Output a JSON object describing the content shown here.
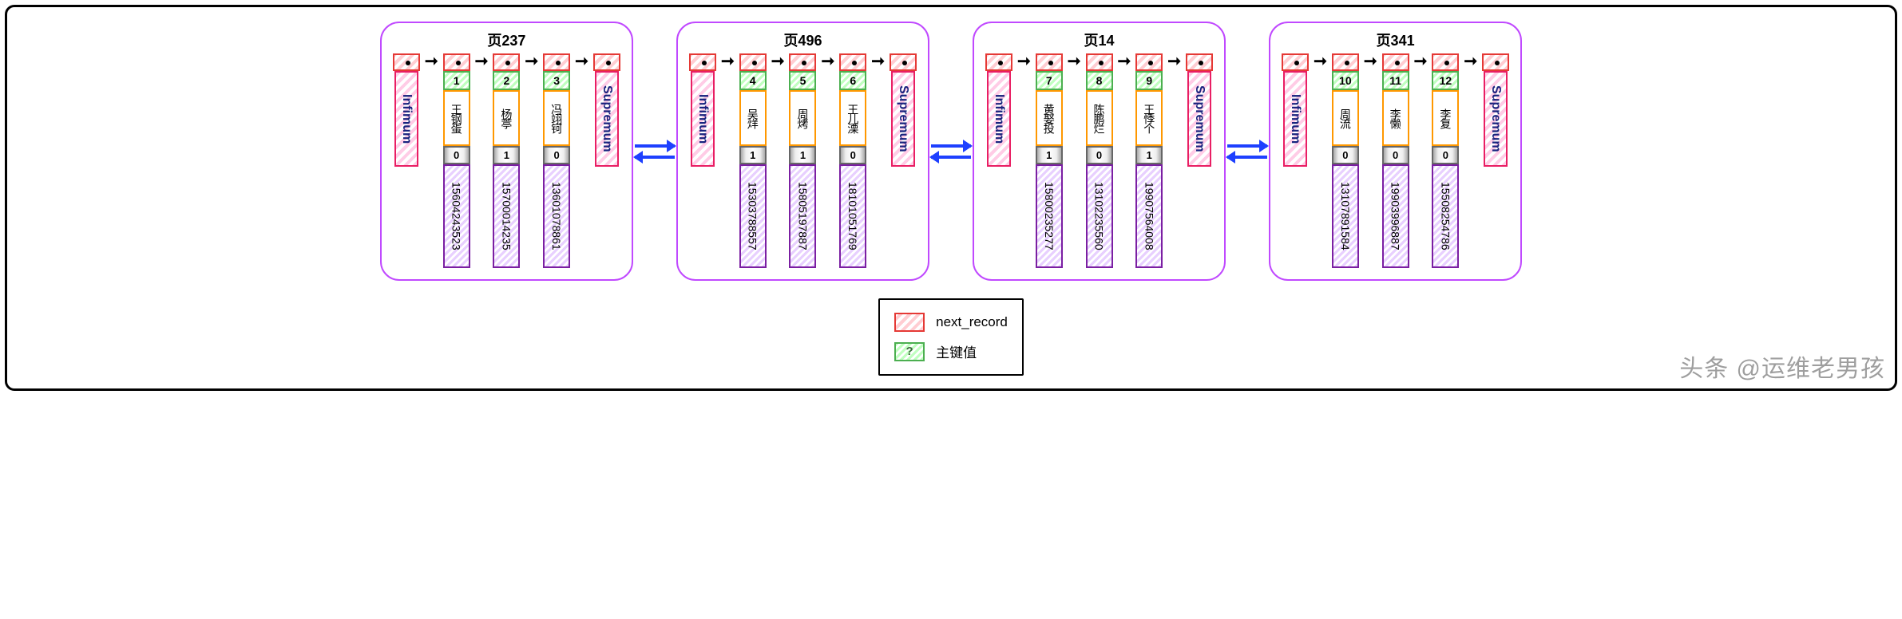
{
  "pages": [
    {
      "title": "页237",
      "records": [
        {
          "pk": "1",
          "name": "王钢蛋",
          "flag": "0",
          "phone": "15604243523"
        },
        {
          "pk": "2",
          "name": "杨葶",
          "flag": "1",
          "phone": "15700014235"
        },
        {
          "pk": "3",
          "name": "冯翊钶",
          "flag": "0",
          "phone": "13601078861"
        }
      ]
    },
    {
      "title": "页496",
      "records": [
        {
          "pk": "4",
          "name": "吴烊",
          "flag": "1",
          "phone": "15303788557"
        },
        {
          "pk": "5",
          "name": "周烤",
          "flag": "1",
          "phone": "15805197887"
        },
        {
          "pk": "6",
          "name": "王儿溧",
          "flag": "0",
          "phone": "18101051769"
        }
      ]
    },
    {
      "title": "页14",
      "records": [
        {
          "pk": "7",
          "name": "黄娶投",
          "flag": "1",
          "phone": "15800235277"
        },
        {
          "pk": "8",
          "name": "陈鹏烂",
          "flag": "0",
          "phone": "13102235560"
        },
        {
          "pk": "9",
          "name": "王悸个",
          "flag": "1",
          "phone": "19907564008"
        }
      ]
    },
    {
      "title": "页341",
      "records": [
        {
          "pk": "10",
          "name": "周流",
          "flag": "0",
          "phone": "13107891584"
        },
        {
          "pk": "11",
          "name": "李懒",
          "flag": "0",
          "phone": "19903996887"
        },
        {
          "pk": "12",
          "name": "李复",
          "flag": "0",
          "phone": "15508254786"
        }
      ]
    }
  ],
  "boundary": {
    "infimum": "Infimum",
    "supremum": "Supremum"
  },
  "legend": {
    "next_record": "next_record",
    "pk_symbol": "?",
    "pk_label": "主键值"
  },
  "watermark": "头条 @运维老男孩",
  "colors": {
    "page_border": "#c049ff",
    "next_record_border": "#e53935",
    "pk_border": "#4caf50",
    "name_border": "#ff9800",
    "flag_border": "#666666",
    "phone_border": "#7b1fa2",
    "boundary_border": "#e91e63",
    "page_arrow": "#1e40ff",
    "record_arrow": "#000000",
    "boundary_text": "#1a237e",
    "outer_frame": "#000000"
  }
}
